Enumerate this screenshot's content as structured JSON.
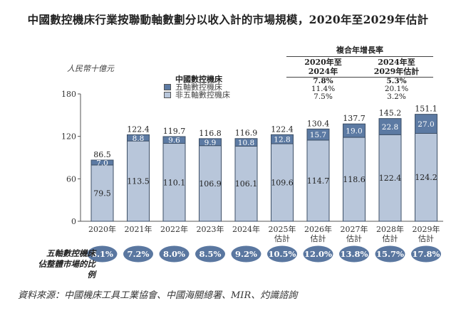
{
  "title": "中國數控機床行業按聯動軸數劃分以收入計的市場規模，2020年至2029年估計",
  "cagr_table": {
    "header": "複合年增長率",
    "columns": [
      "2020年至\n2024年",
      "2024年至\n2029年估計"
    ],
    "column_lines": [
      [
        "2020年至",
        "2024年"
      ],
      [
        "2024年至",
        "2029年估計"
      ]
    ],
    "rows": [
      {
        "label": "中國數控機床",
        "values": [
          "7.8%",
          "5.3%"
        ],
        "bold": true
      },
      {
        "label": "五軸數控機床",
        "values": [
          "11.4%",
          "20.1%"
        ],
        "bold": false
      },
      {
        "label": "非五軸數控機床",
        "values": [
          "7.5%",
          "3.2%"
        ],
        "bold": false
      }
    ]
  },
  "colors": {
    "five_axis": "#5c7aa3",
    "non_five_axis": "#b8c6da",
    "bar_border": "#3d4f66",
    "ellipse": "#5a77a0"
  },
  "chart_data": {
    "type": "bar",
    "stacked": true,
    "title": "中國數控機床行業按聯動軸數劃分以收入計的市場規模，2020年至2029年估計",
    "ylabel": "人民幣十億元",
    "xlabel": "",
    "ylim": [
      0,
      180
    ],
    "yticks": [
      0,
      60,
      120,
      180
    ],
    "grid": false,
    "legend_title": "中國數控機床",
    "legend_position": "top-center",
    "categories": [
      [
        "2020年"
      ],
      [
        "2021年"
      ],
      [
        "2022年"
      ],
      [
        "2023年"
      ],
      [
        "2024年"
      ],
      [
        "2025年",
        "估計"
      ],
      [
        "2026年",
        "估計"
      ],
      [
        "2027年",
        "估計"
      ],
      [
        "2028年",
        "估計"
      ],
      [
        "2029年",
        "估計"
      ]
    ],
    "series": [
      {
        "name": "非五軸數控機床",
        "values": [
          79.5,
          113.5,
          110.1,
          106.9,
          106.1,
          109.6,
          114.7,
          118.6,
          122.4,
          124.2
        ]
      },
      {
        "name": "五軸數控機床",
        "values": [
          7.0,
          8.8,
          9.6,
          9.9,
          10.8,
          12.8,
          15.7,
          19.0,
          22.8,
          27.0
        ]
      }
    ],
    "totals": [
      "86.5",
      "122.4",
      "119.7",
      "116.8",
      "116.9",
      "122.4",
      "130.4",
      "137.7",
      "145.2",
      "151.1"
    ],
    "non_five_labels": [
      "79.5",
      "113.5",
      "110.1",
      "106.9",
      "106.1",
      "109.6",
      "114.7",
      "118.6",
      "122.4",
      "124.2"
    ],
    "five_labels": [
      "7.0",
      "8.8",
      "9.6",
      "9.9",
      "10.8",
      "12.8",
      "15.7",
      "19.0",
      "22.8",
      "27.0"
    ],
    "ratio_label": [
      "五軸數控機床",
      "佔整體市場的比例"
    ],
    "ratios": [
      "8.1%",
      "7.2%",
      "8.0%",
      "8.5%",
      "9.2%",
      "10.5%",
      "12.0%",
      "13.8%",
      "15.7%",
      "17.8%"
    ]
  },
  "source": "資料來源：中國機床工具工業協會、中國海關總署、MIR、灼識諮詢"
}
